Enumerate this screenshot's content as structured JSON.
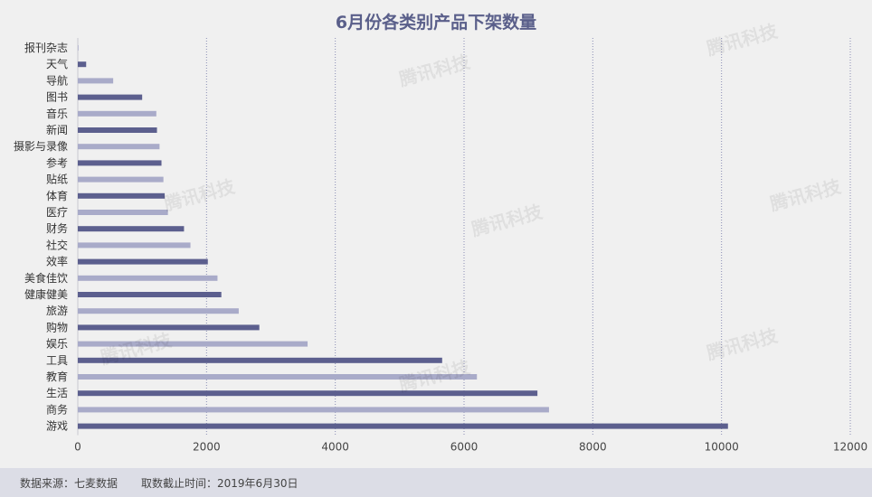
{
  "chart_data": {
    "type": "bar",
    "orientation": "horizontal",
    "title": "6月份各类别产品下架数量",
    "categories": [
      "报刊杂志",
      "天气",
      "导航",
      "图书",
      "音乐",
      "新闻",
      "摄影与录像",
      "参考",
      "贴纸",
      "体育",
      "医疗",
      "财务",
      "社交",
      "效率",
      "美食佳饮",
      "健康健美",
      "旅游",
      "购物",
      "娱乐",
      "工具",
      "教育",
      "生活",
      "商务",
      "游戏"
    ],
    "values": [
      10,
      130,
      550,
      1000,
      1220,
      1230,
      1270,
      1300,
      1330,
      1350,
      1400,
      1650,
      1750,
      2020,
      2170,
      2230,
      2500,
      2820,
      3570,
      5660,
      6200,
      7140,
      7320,
      10100
    ],
    "xlim": [
      0,
      12000
    ],
    "xticks": [
      0,
      2000,
      4000,
      6000,
      8000,
      10000,
      12000
    ],
    "grid": "vertical-dotted",
    "colors": {
      "dark": "#5c5f8e",
      "light": "#a9abc9"
    }
  },
  "footer": {
    "source": "数据来源：七麦数据",
    "date": "取数截止时间：2019年6月30日"
  },
  "watermark": "腾讯科技"
}
